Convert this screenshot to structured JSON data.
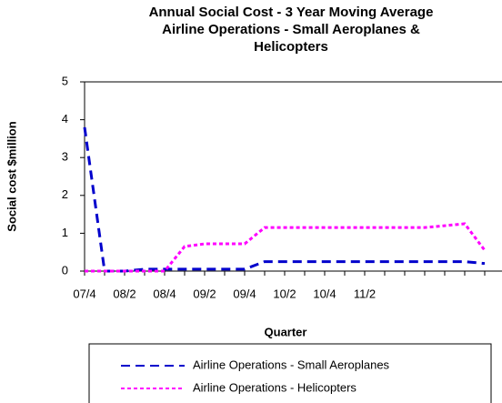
{
  "chart_data": {
    "type": "line",
    "title": [
      "Annual Social Cost - 3 Year Moving Average",
      "Airline Operations - Small Aeroplanes &",
      "Helicopters"
    ],
    "x_label": "Quarter",
    "y_label": "Social cost  $million",
    "categories": [
      "07/4",
      null,
      "08/2",
      null,
      "08/4",
      null,
      "09/2",
      null,
      "09/4",
      null,
      "10/2",
      null,
      "10/4",
      null,
      "11/2",
      null,
      null,
      null,
      null,
      null,
      null
    ],
    "series": [
      {
        "name": "Airline Operations - Small Aeroplanes",
        "color": "#0000cc",
        "dash": "10 6",
        "values": [
          3.8,
          0,
          0,
          0.05,
          0.05,
          0.05,
          0.05,
          0.05,
          0.05,
          0.25,
          0.25,
          0.25,
          0.25,
          0.25,
          0.25,
          0.25,
          0.25,
          0.25,
          0.25,
          0.25,
          0.2
        ]
      },
      {
        "name": "Airline Operations - Helicopters",
        "color": "#ff00ff",
        "dash": "4 3",
        "values": [
          0,
          0,
          0,
          0,
          0,
          0.65,
          0.72,
          0.72,
          0.72,
          1.15,
          1.15,
          1.15,
          1.15,
          1.15,
          1.15,
          1.15,
          1.15,
          1.15,
          1.2,
          1.25,
          0.55
        ]
      }
    ],
    "ylim": [
      0,
      5
    ],
    "yticks": [
      0,
      1,
      2,
      3,
      4,
      5
    ],
    "grid": false
  }
}
